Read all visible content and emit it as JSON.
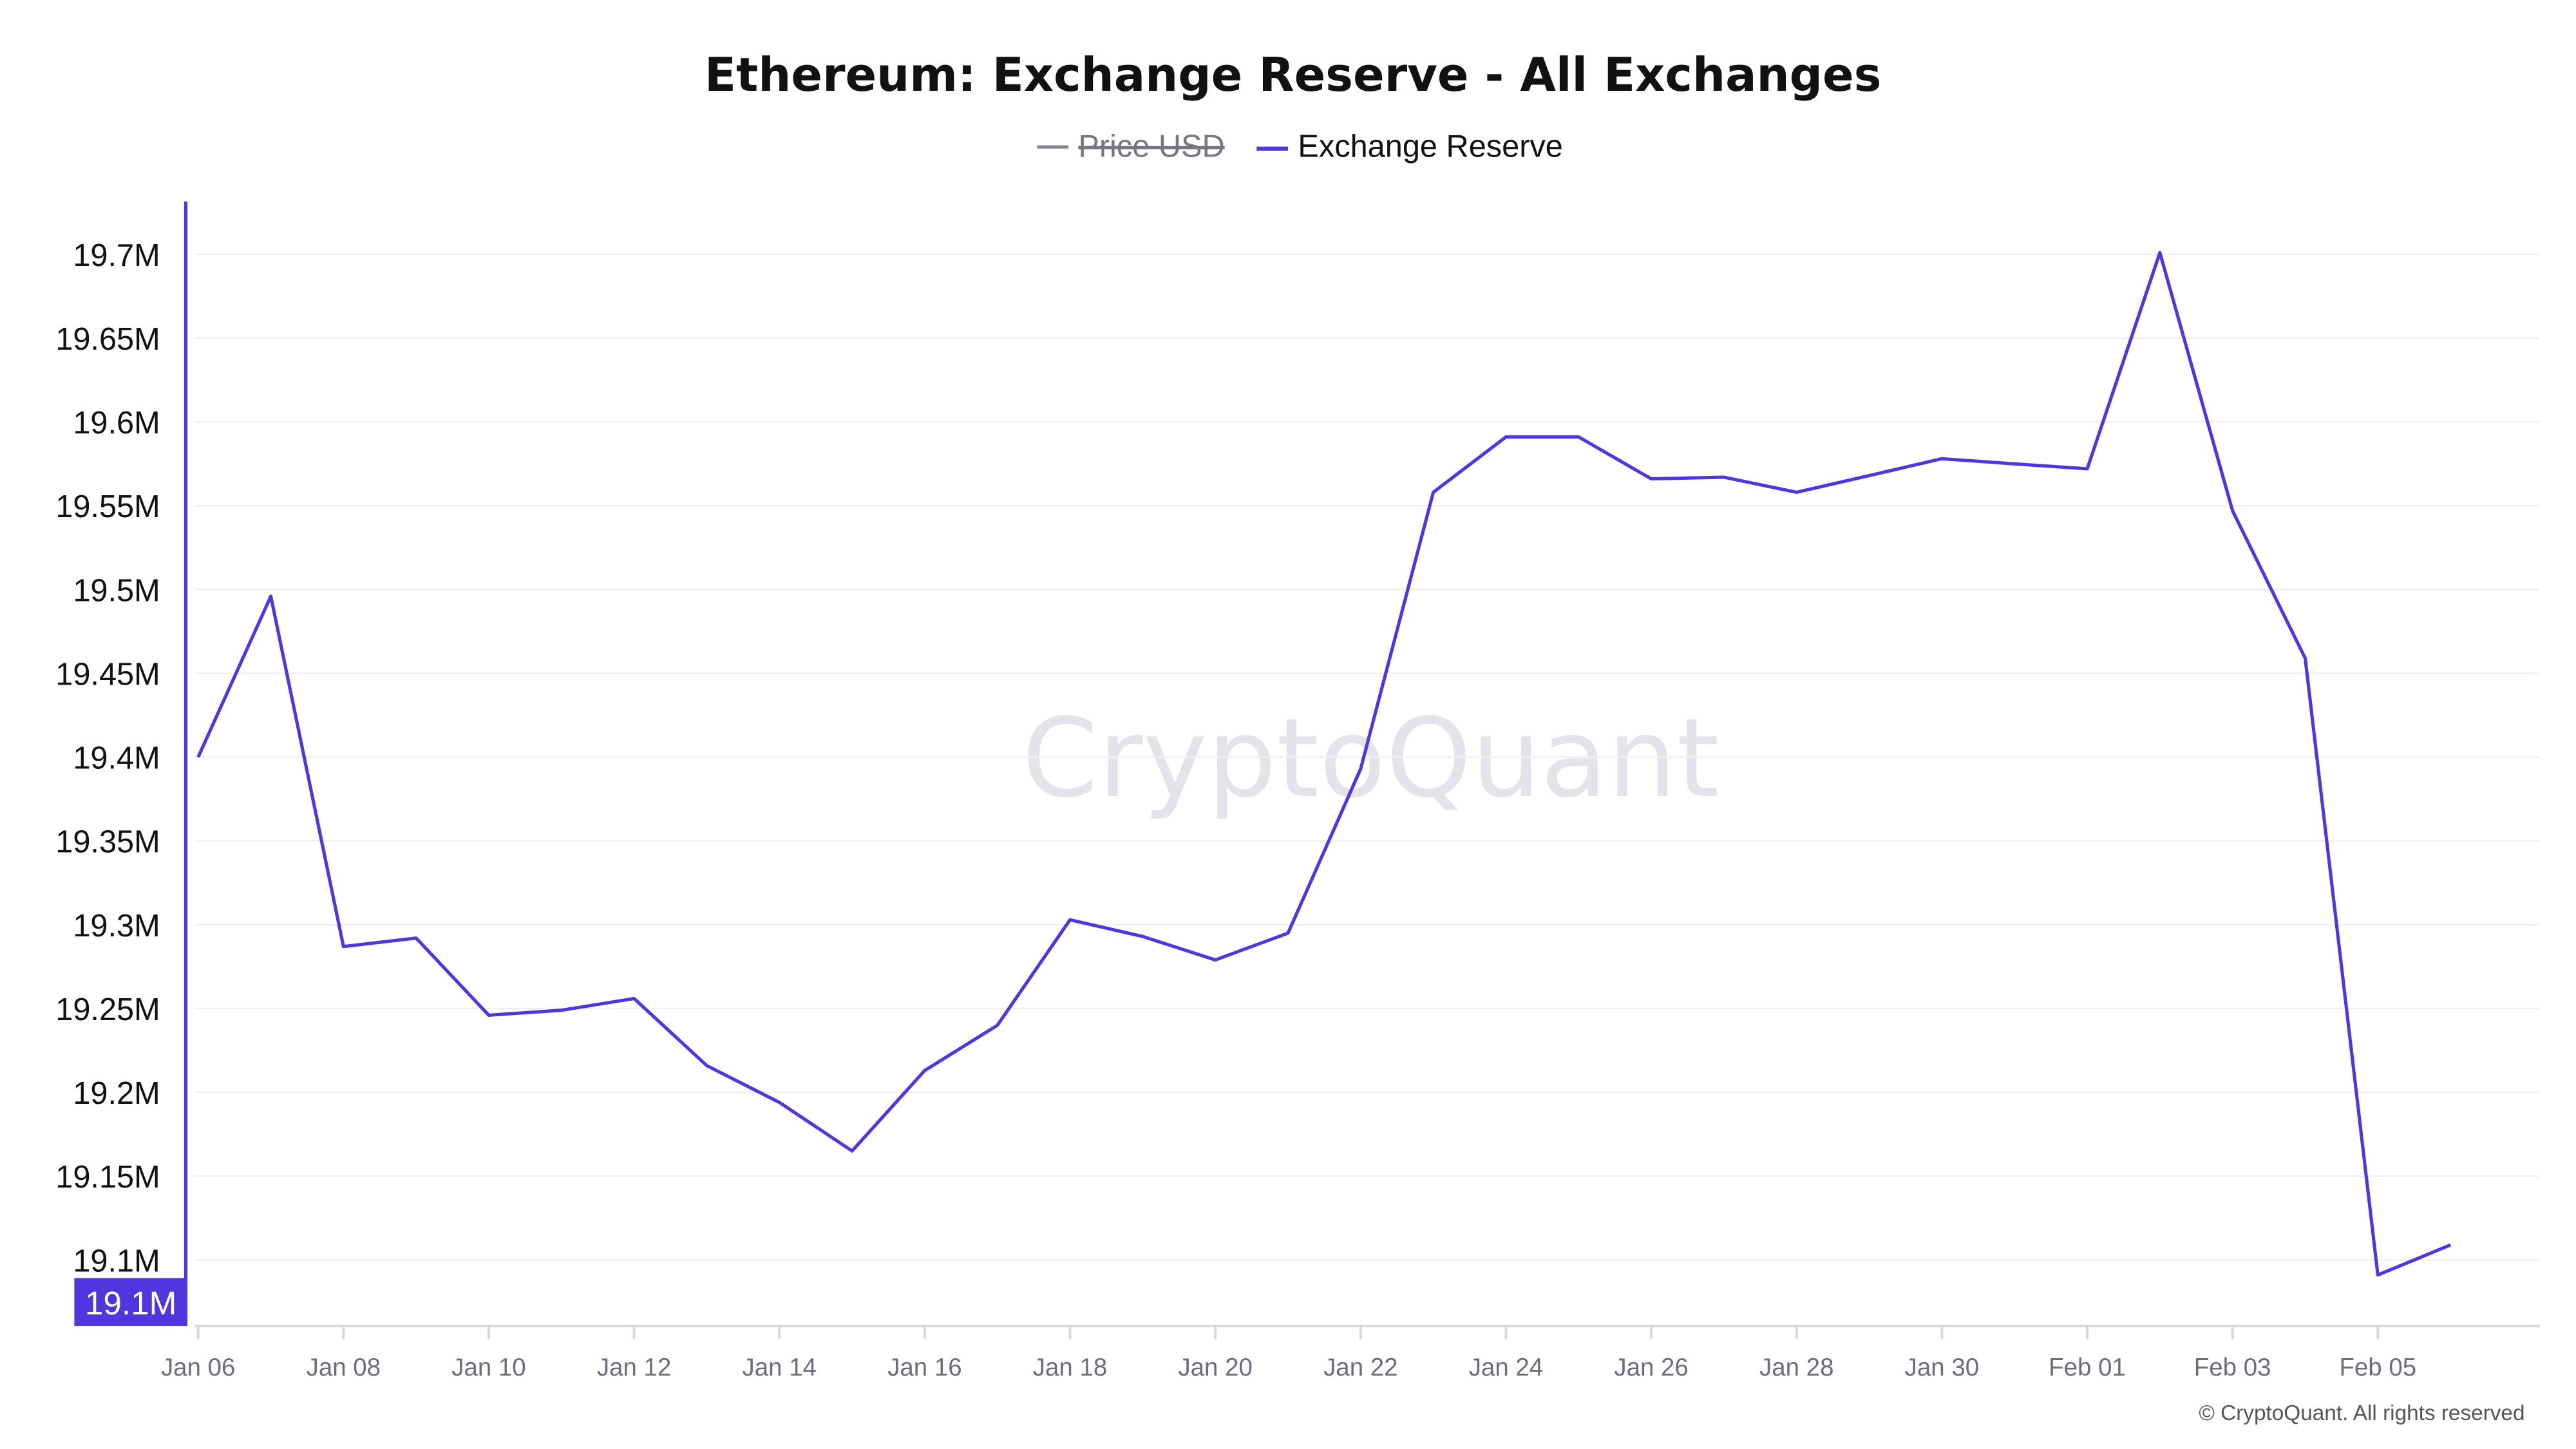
{
  "chart_data": {
    "type": "line",
    "title": "Ethereum: Exchange Reserve - All Exchanges",
    "legend": {
      "placement": "top",
      "items": [
        {
          "label": "Price USD",
          "color": "#8a8896",
          "hidden": true
        },
        {
          "label": "Exchange Reserve",
          "color": "#4f35e3",
          "hidden": false
        }
      ]
    },
    "x": [
      "Jan 06",
      "Jan 07",
      "Jan 08",
      "Jan 09",
      "Jan 10",
      "Jan 11",
      "Jan 12",
      "Jan 13",
      "Jan 14",
      "Jan 15",
      "Jan 16",
      "Jan 17",
      "Jan 18",
      "Jan 19",
      "Jan 20",
      "Jan 21",
      "Jan 22",
      "Jan 23",
      "Jan 24",
      "Jan 25",
      "Jan 26",
      "Jan 27",
      "Jan 28",
      "Jan 29",
      "Jan 30",
      "Jan 31",
      "Feb 01",
      "Feb 02",
      "Feb 03",
      "Feb 04",
      "Feb 05",
      "Feb 06"
    ],
    "series": [
      {
        "name": "Exchange Reserve",
        "color": "#4f35e3",
        "values": [
          19.4,
          19.496,
          19.287,
          19.292,
          19.246,
          19.249,
          19.256,
          19.216,
          19.194,
          19.165,
          19.213,
          19.24,
          19.303,
          19.293,
          19.279,
          19.295,
          19.393,
          19.558,
          19.591,
          19.591,
          19.566,
          19.567,
          19.558,
          19.568,
          19.578,
          19.575,
          19.572,
          19.701,
          19.547,
          19.459,
          19.091,
          19.109
        ]
      }
    ],
    "yunit": "M",
    "ylim": [
      19.06,
      19.73
    ],
    "yticks": [
      "19.1M",
      "19.15M",
      "19.2M",
      "19.25M",
      "19.3M",
      "19.35M",
      "19.4M",
      "19.45M",
      "19.5M",
      "19.55M",
      "19.6M",
      "19.65M",
      "19.7M"
    ],
    "ytick_values": [
      19.1,
      19.15,
      19.2,
      19.25,
      19.3,
      19.35,
      19.4,
      19.45,
      19.5,
      19.55,
      19.6,
      19.65,
      19.7
    ],
    "xticks": [
      "Jan 06",
      "Jan 08",
      "Jan 10",
      "Jan 12",
      "Jan 14",
      "Jan 16",
      "Jan 18",
      "Jan 20",
      "Jan 22",
      "Jan 24",
      "Jan 26",
      "Jan 28",
      "Jan 30",
      "Feb 01",
      "Feb 03",
      "Feb 05"
    ],
    "crosshair_label": "19.1M",
    "grid": true,
    "watermark": "CryptoQuant",
    "footer": "© CryptoQuant. All rights reserved"
  }
}
